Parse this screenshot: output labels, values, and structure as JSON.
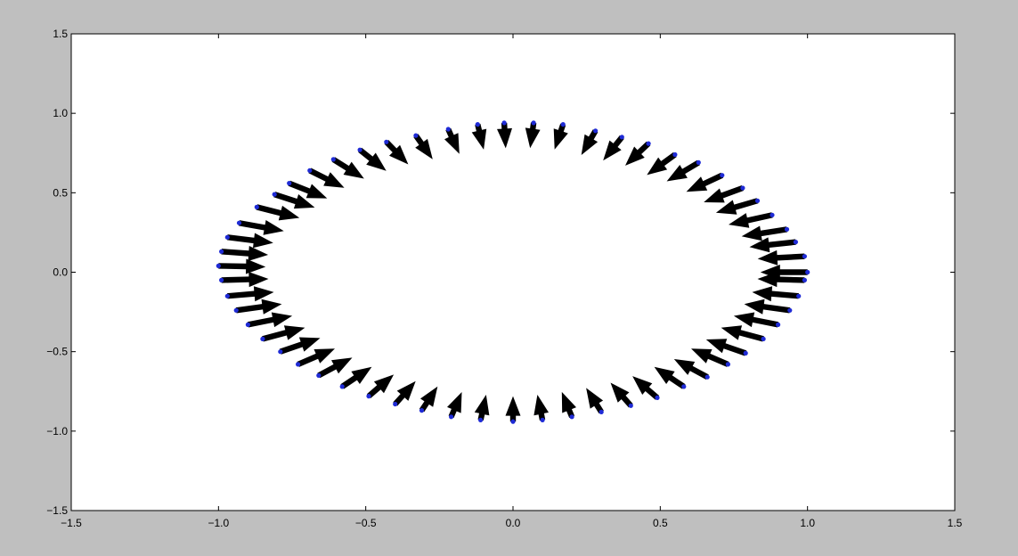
{
  "chart_data": {
    "type": "quiver",
    "title": "",
    "xlabel": "",
    "ylabel": "",
    "xlim": [
      -1.5,
      1.5
    ],
    "ylim": [
      -1.5,
      1.5
    ],
    "xticks": [
      -1.5,
      -1.0,
      -0.5,
      0.0,
      0.5,
      1.0,
      1.5
    ],
    "yticks": [
      -1.5,
      -1.0,
      -0.5,
      0.0,
      0.5,
      1.0,
      1.5
    ],
    "xtick_labels": [
      "−1.5",
      "−1.0",
      "−0.5",
      "0.0",
      "0.5",
      "1.0",
      "1.5"
    ],
    "ytick_labels": [
      "−1.5",
      "−1.0",
      "−0.5",
      "0.0",
      "0.5",
      "1.0",
      "1.5"
    ],
    "grid": false,
    "legend": "none",
    "colors": {
      "figure_background": "#bfbfbf",
      "axes_background": "#ffffff",
      "arrow": "#000000",
      "point": "#1f2bd6"
    },
    "arrow_style": "points inward toward the origin, length about 0.16 data units",
    "points": [
      [
        1.0,
        0.0
      ],
      [
        0.99,
        0.1
      ],
      [
        0.96,
        0.19
      ],
      [
        0.93,
        0.27
      ],
      [
        0.88,
        0.36
      ],
      [
        0.83,
        0.45
      ],
      [
        0.78,
        0.53
      ],
      [
        0.71,
        0.61
      ],
      [
        0.63,
        0.69
      ],
      [
        0.55,
        0.74
      ],
      [
        0.46,
        0.81
      ],
      [
        0.37,
        0.85
      ],
      [
        0.28,
        0.89
      ],
      [
        0.17,
        0.93
      ],
      [
        0.07,
        0.94
      ],
      [
        -0.03,
        0.94
      ],
      [
        -0.12,
        0.93
      ],
      [
        -0.22,
        0.9
      ],
      [
        -0.33,
        0.86
      ],
      [
        -0.43,
        0.82
      ],
      [
        -0.52,
        0.77
      ],
      [
        -0.61,
        0.71
      ],
      [
        -0.69,
        0.64
      ],
      [
        -0.76,
        0.56
      ],
      [
        -0.81,
        0.49
      ],
      [
        -0.87,
        0.41
      ],
      [
        -0.93,
        0.31
      ],
      [
        -0.97,
        0.22
      ],
      [
        -0.99,
        0.13
      ],
      [
        -1.0,
        0.04
      ],
      [
        -0.99,
        -0.05
      ],
      [
        -0.97,
        -0.15
      ],
      [
        -0.94,
        -0.24
      ],
      [
        -0.9,
        -0.33
      ],
      [
        -0.85,
        -0.42
      ],
      [
        -0.79,
        -0.5
      ],
      [
        -0.73,
        -0.58
      ],
      [
        -0.66,
        -0.65
      ],
      [
        -0.58,
        -0.72
      ],
      [
        -0.49,
        -0.78
      ],
      [
        -0.4,
        -0.83
      ],
      [
        -0.31,
        -0.87
      ],
      [
        -0.21,
        -0.91
      ],
      [
        -0.11,
        -0.93
      ],
      [
        0.0,
        -0.94
      ],
      [
        0.1,
        -0.93
      ],
      [
        0.2,
        -0.91
      ],
      [
        0.3,
        -0.88
      ],
      [
        0.4,
        -0.84
      ],
      [
        0.49,
        -0.79
      ],
      [
        0.58,
        -0.72
      ],
      [
        0.66,
        -0.66
      ],
      [
        0.73,
        -0.58
      ],
      [
        0.79,
        -0.51
      ],
      [
        0.85,
        -0.42
      ],
      [
        0.9,
        -0.33
      ],
      [
        0.94,
        -0.24
      ],
      [
        0.97,
        -0.15
      ],
      [
        0.99,
        -0.05
      ]
    ]
  }
}
